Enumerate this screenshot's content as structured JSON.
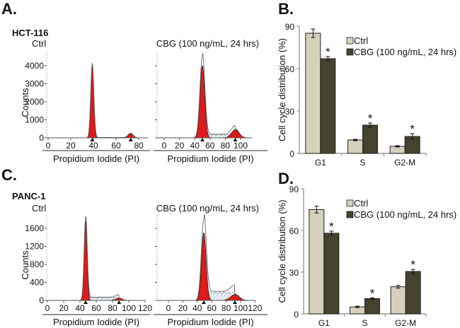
{
  "panels": {
    "a": {
      "letter": "A.",
      "cell_line": "HCT-116"
    },
    "b": {
      "letter": "B."
    },
    "c": {
      "letter": "C.",
      "cell_line": "PANC-1"
    },
    "d": {
      "letter": "D."
    }
  },
  "colors": {
    "ctrl": "#d6d1bd",
    "cbg": "#45422e",
    "phase_fill": "#e01a1a",
    "s_phase_hatch": "#b8c8dc"
  },
  "chart_data": [
    {
      "id": "a_ctrl",
      "type": "area",
      "title": "Ctrl",
      "ylabel": "Counts",
      "xlabel": "Propidium Iodide (PI)",
      "xticks": [
        "0",
        "20",
        "40",
        "60",
        "80"
      ],
      "yticks": [
        "0",
        "1000",
        "2000",
        "3000",
        "4000"
      ],
      "xlim": [
        0,
        88
      ],
      "ylim": [
        0,
        4700
      ],
      "peaks": [
        {
          "phase": "G1",
          "x": 39,
          "y": 4100
        },
        {
          "phase": "G2-M",
          "x": 73,
          "y": 230
        }
      ],
      "s_level": 20,
      "envelope_max": 4150
    },
    {
      "id": "a_cbg",
      "type": "area",
      "title": "CBG (100 ng/mL, 24 hrs)",
      "xlabel": "Propidium Iodide (PI)",
      "xticks": [
        "0",
        "20",
        "40",
        "60",
        "80",
        "100"
      ],
      "yticks": [
        "0",
        "1000",
        "2000",
        "3000",
        "4000"
      ],
      "xlim": [
        0,
        115
      ],
      "ylim": [
        0,
        4700
      ],
      "peaks": [
        {
          "phase": "G1",
          "x": 50,
          "y": 4000
        },
        {
          "phase": "G2-M",
          "x": 93,
          "y": 450
        }
      ],
      "s_level": 190,
      "envelope_max": 4550
    },
    {
      "id": "b",
      "type": "bar",
      "ylabel": "Cell cycle distribution (%)",
      "categories": [
        "G1",
        "S",
        "G2-M"
      ],
      "ylim": [
        0,
        90
      ],
      "yticks": [
        "0",
        "30",
        "60",
        "90"
      ],
      "legend": "top-right",
      "series": [
        {
          "name": "Ctrl",
          "values": [
            85,
            9.5,
            5
          ],
          "errors": [
            3,
            0.5,
            0.5
          ],
          "significant": [
            false,
            false,
            false
          ]
        },
        {
          "name": "CBG (100 ng/mL, 24 hrs)",
          "values": [
            67,
            20,
            12
          ],
          "errors": [
            1.5,
            1.5,
            2
          ],
          "significant": [
            true,
            true,
            true
          ]
        }
      ],
      "significance_mark": "*"
    },
    {
      "id": "c_ctrl",
      "type": "area",
      "title": "Ctrl",
      "ylabel": "Counts",
      "xlabel": "Propidium Iodide (PI)",
      "xticks": [
        "0",
        "20",
        "40",
        "60",
        "80",
        "100",
        "120"
      ],
      "yticks": [
        "0",
        "400",
        "800",
        "1200",
        "1600"
      ],
      "xlim": [
        0,
        120
      ],
      "ylim": [
        0,
        1900
      ],
      "peaks": [
        {
          "phase": "G1",
          "x": 47,
          "y": 1750
        },
        {
          "phase": "G2-M",
          "x": 88,
          "y": 50
        }
      ],
      "s_level": 70,
      "envelope_max": 1850
    },
    {
      "id": "c_cbg",
      "type": "area",
      "title": "CBG (100 ng/mL, 24 hrs)",
      "xlabel": "Propidium Iodide (PI)",
      "xticks": [
        "0",
        "20",
        "40",
        "60",
        "80",
        "100",
        "120"
      ],
      "yticks": [
        "0",
        "400",
        "800",
        "1200",
        "1600"
      ],
      "xlim": [
        0,
        120
      ],
      "ylim": [
        0,
        1900
      ],
      "peaks": [
        {
          "phase": "G1",
          "x": 49,
          "y": 1500
        },
        {
          "phase": "G2-M",
          "x": 92,
          "y": 130
        }
      ],
      "s_level": 190,
      "envelope_max": 1800
    },
    {
      "id": "d",
      "type": "bar",
      "ylabel": "Cell cycle distribution (%)",
      "categories": [
        "G1",
        "S",
        "G2-M"
      ],
      "ylim": [
        0,
        90
      ],
      "yticks": [
        "0",
        "30",
        "60",
        "90"
      ],
      "legend": "top-right",
      "series": [
        {
          "name": "Ctrl",
          "values": [
            75,
            5,
            19.5
          ],
          "errors": [
            2.5,
            0.5,
            1
          ],
          "significant": [
            false,
            false,
            false
          ]
        },
        {
          "name": "CBG (100 ng/mL, 24 hrs)",
          "values": [
            58,
            11,
            30.5
          ],
          "errors": [
            1.5,
            0.5,
            1.5
          ],
          "significant": [
            true,
            true,
            true
          ]
        }
      ],
      "significance_mark": "*"
    }
  ]
}
